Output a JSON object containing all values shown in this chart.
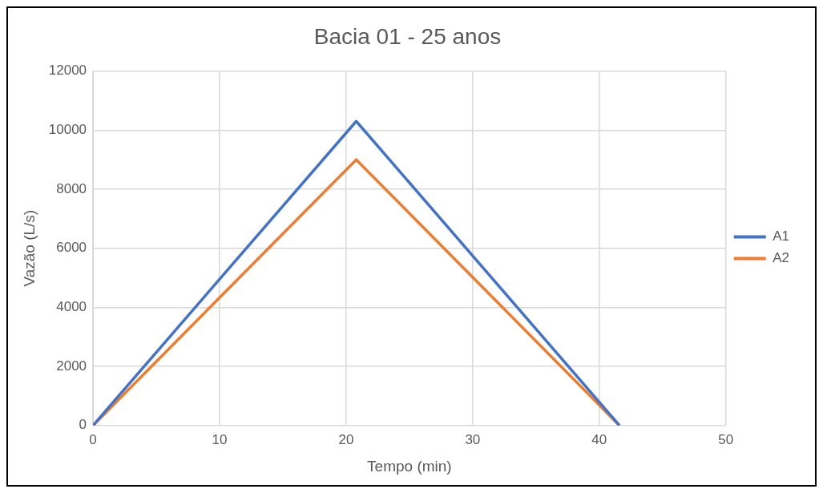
{
  "chart_data": {
    "type": "line",
    "title": "Bacia 01 - 25 anos",
    "xlabel": "Tempo (min)",
    "ylabel": "Vazão (L/s)",
    "x": [
      0,
      20.8,
      41.6
    ],
    "series": [
      {
        "name": "A1",
        "color": "#4472c4",
        "values": [
          0,
          10300,
          0
        ]
      },
      {
        "name": "A2",
        "color": "#ed7d31",
        "values": [
          0,
          9000,
          0
        ]
      }
    ],
    "xlim": [
      0,
      50
    ],
    "xticks": [
      0,
      10,
      20,
      30,
      40,
      50
    ],
    "ylim": [
      0,
      12000
    ],
    "yticks": [
      0,
      2000,
      4000,
      6000,
      8000,
      10000,
      12000
    ],
    "grid": true,
    "legend": "right",
    "marker": "none"
  }
}
